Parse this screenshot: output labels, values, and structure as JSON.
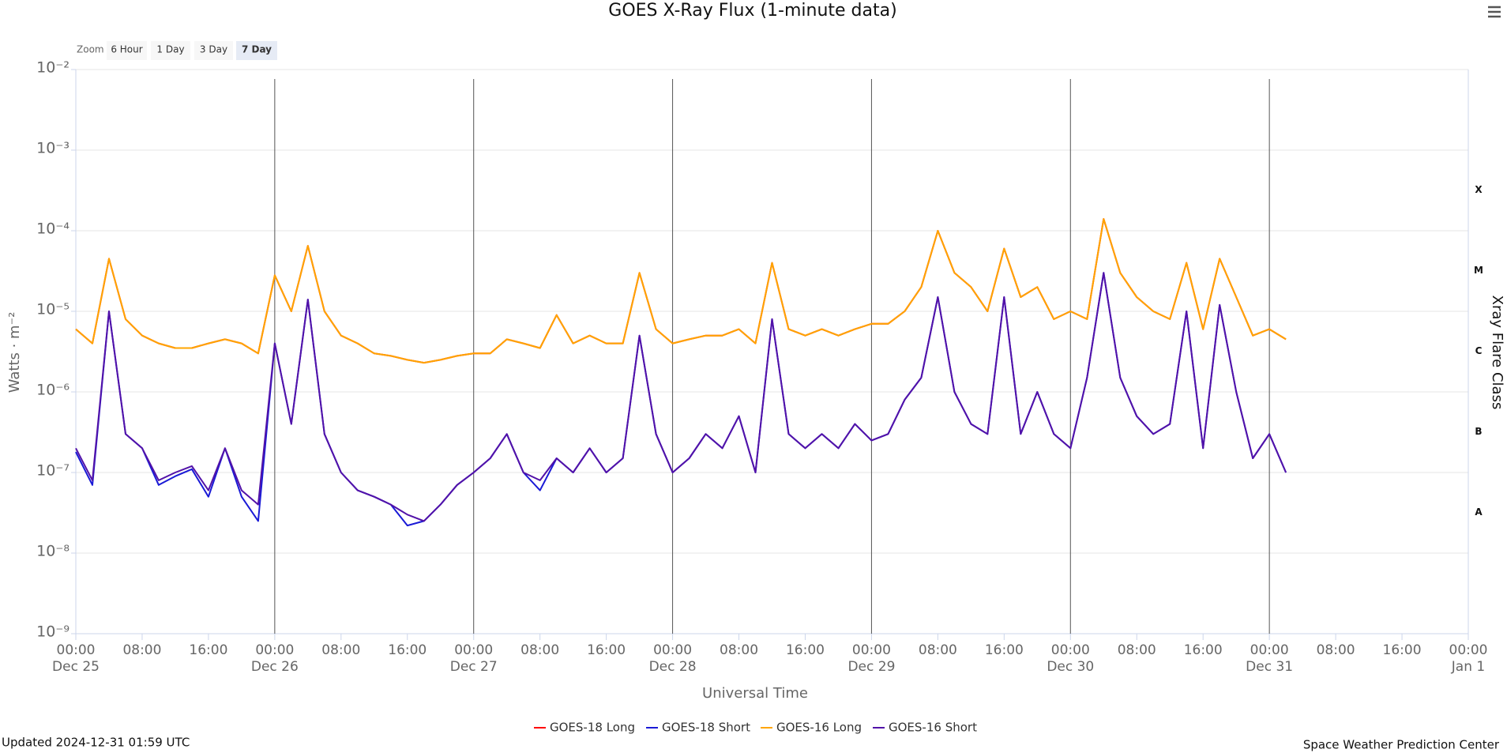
{
  "chart_data": {
    "type": "line",
    "title": "GOES X-Ray Flux (1-minute data)",
    "xlabel": "Universal Time",
    "ylabel": "Watts · m⁻²",
    "y2label": "Xray Flare Class",
    "log_y": true,
    "grid": true,
    "day_lines": true,
    "legend": "bottom",
    "x": [
      "Dec 25 00:00",
      "Dec 25 02:00",
      "Dec 25 04:00",
      "Dec 25 06:00",
      "Dec 25 08:00",
      "Dec 25 10:00",
      "Dec 25 12:00",
      "Dec 25 14:00",
      "Dec 25 16:00",
      "Dec 25 18:00",
      "Dec 25 20:00",
      "Dec 25 22:00",
      "Dec 26 00:00",
      "Dec 26 02:00",
      "Dec 26 04:00",
      "Dec 26 06:00",
      "Dec 26 08:00",
      "Dec 26 10:00",
      "Dec 26 12:00",
      "Dec 26 14:00",
      "Dec 26 16:00",
      "Dec 26 18:00",
      "Dec 26 20:00",
      "Dec 26 22:00",
      "Dec 27 00:00",
      "Dec 27 02:00",
      "Dec 27 04:00",
      "Dec 27 06:00",
      "Dec 27 08:00",
      "Dec 27 10:00",
      "Dec 27 12:00",
      "Dec 27 14:00",
      "Dec 27 16:00",
      "Dec 27 18:00",
      "Dec 27 20:00",
      "Dec 27 22:00",
      "Dec 28 00:00",
      "Dec 28 02:00",
      "Dec 28 04:00",
      "Dec 28 06:00",
      "Dec 28 08:00",
      "Dec 28 10:00",
      "Dec 28 12:00",
      "Dec 28 14:00",
      "Dec 28 16:00",
      "Dec 28 18:00",
      "Dec 28 20:00",
      "Dec 28 22:00",
      "Dec 29 00:00",
      "Dec 29 02:00",
      "Dec 29 04:00",
      "Dec 29 06:00",
      "Dec 29 08:00",
      "Dec 29 10:00",
      "Dec 29 12:00",
      "Dec 29 14:00",
      "Dec 29 16:00",
      "Dec 29 18:00",
      "Dec 29 20:00",
      "Dec 29 22:00",
      "Dec 30 00:00",
      "Dec 30 02:00",
      "Dec 30 04:00",
      "Dec 30 06:00",
      "Dec 30 08:00",
      "Dec 30 10:00",
      "Dec 30 12:00",
      "Dec 30 14:00",
      "Dec 30 16:00",
      "Dec 30 18:00",
      "Dec 30 20:00",
      "Dec 30 22:00",
      "Dec 31 00:00",
      "Dec 31 02:00"
    ],
    "series": [
      {
        "name": "GOES-18 Long",
        "color": "#ff0000",
        "values": [
          6e-06,
          4e-06,
          4.5e-05,
          8e-06,
          5e-06,
          4e-06,
          3.5e-06,
          3.5e-06,
          4e-06,
          4.5e-06,
          4e-06,
          3e-06,
          2.8e-05,
          1e-05,
          6.5e-05,
          1e-05,
          5e-06,
          4e-06,
          3e-06,
          2.8e-06,
          2.5e-06,
          2.3e-06,
          2.5e-06,
          2.8e-06,
          3e-06,
          3e-06,
          4.5e-06,
          4e-06,
          3.5e-06,
          9e-06,
          4e-06,
          5e-06,
          4e-06,
          4e-06,
          3e-05,
          6e-06,
          4e-06,
          4.5e-06,
          5e-06,
          5e-06,
          6e-06,
          4e-06,
          4e-05,
          6e-06,
          5e-06,
          6e-06,
          5e-06,
          6e-06,
          7e-06,
          7e-06,
          1e-05,
          2e-05,
          0.0001,
          3e-05,
          2e-05,
          1e-05,
          6e-05,
          1.5e-05,
          2e-05,
          8e-06,
          1e-05,
          8e-06,
          0.00014,
          3e-05,
          1.5e-05,
          1e-05,
          8e-06,
          4e-05,
          6e-06,
          4.5e-05,
          1.5e-05,
          5e-06,
          6e-06,
          4.5e-06
        ]
      },
      {
        "name": "GOES-18 Short",
        "color": "#1a1ad6",
        "values": [
          1.8e-07,
          7e-08,
          1e-05,
          3e-07,
          2e-07,
          7e-08,
          9e-08,
          1.1e-07,
          5e-08,
          2e-07,
          5e-08,
          2.5e-08,
          4e-06,
          4e-07,
          1.4e-05,
          3e-07,
          1e-07,
          6e-08,
          5e-08,
          4e-08,
          2.2e-08,
          2.5e-08,
          4e-08,
          7e-08,
          1e-07,
          1.5e-07,
          3e-07,
          1e-07,
          6e-08,
          1.5e-07,
          1e-07,
          2e-07,
          1e-07,
          1.5e-07,
          5e-06,
          3e-07,
          1e-07,
          1.5e-07,
          3e-07,
          2e-07,
          5e-07,
          1e-07,
          8e-06,
          3e-07,
          2e-07,
          3e-07,
          2e-07,
          4e-07,
          2.5e-07,
          3e-07,
          8e-07,
          1.5e-06,
          1.5e-05,
          1e-06,
          4e-07,
          3e-07,
          1.5e-05,
          3e-07,
          1e-06,
          3e-07,
          2e-07,
          1.5e-06,
          3e-05,
          1.5e-06,
          5e-07,
          3e-07,
          4e-07,
          1e-05,
          2e-07,
          1.2e-05,
          1e-06,
          1.5e-07,
          3e-07,
          1e-07
        ]
      },
      {
        "name": "GOES-16 Long",
        "color": "#ffa500",
        "values": [
          6e-06,
          4e-06,
          4.5e-05,
          8e-06,
          5e-06,
          4e-06,
          3.5e-06,
          3.5e-06,
          4e-06,
          4.5e-06,
          4e-06,
          3e-06,
          2.8e-05,
          1e-05,
          6.5e-05,
          1e-05,
          5e-06,
          4e-06,
          3e-06,
          2.8e-06,
          2.5e-06,
          2.3e-06,
          2.5e-06,
          2.8e-06,
          3e-06,
          3e-06,
          4.5e-06,
          4e-06,
          3.5e-06,
          9e-06,
          4e-06,
          5e-06,
          4e-06,
          4e-06,
          3e-05,
          6e-06,
          4e-06,
          4.5e-06,
          5e-06,
          5e-06,
          6e-06,
          4e-06,
          4e-05,
          6e-06,
          5e-06,
          6e-06,
          5e-06,
          6e-06,
          7e-06,
          7e-06,
          1e-05,
          2e-05,
          0.0001,
          3e-05,
          2e-05,
          1e-05,
          6e-05,
          1.5e-05,
          2e-05,
          8e-06,
          1e-05,
          8e-06,
          0.00014,
          3e-05,
          1.5e-05,
          1e-05,
          8e-06,
          4e-05,
          6e-06,
          4.5e-05,
          1.5e-05,
          5e-06,
          6e-06,
          4.5e-06
        ]
      },
      {
        "name": "GOES-16 Short",
        "color": "#5212a8",
        "values": [
          2e-07,
          8e-08,
          1e-05,
          3e-07,
          2e-07,
          8e-08,
          1e-07,
          1.2e-07,
          6e-08,
          2e-07,
          6e-08,
          4e-08,
          4e-06,
          4e-07,
          1.4e-05,
          3e-07,
          1e-07,
          6e-08,
          5e-08,
          4e-08,
          3e-08,
          2.5e-08,
          4e-08,
          7e-08,
          1e-07,
          1.5e-07,
          3e-07,
          1e-07,
          8e-08,
          1.5e-07,
          1e-07,
          2e-07,
          1e-07,
          1.5e-07,
          5e-06,
          3e-07,
          1e-07,
          1.5e-07,
          3e-07,
          2e-07,
          5e-07,
          1e-07,
          8e-06,
          3e-07,
          2e-07,
          3e-07,
          2e-07,
          4e-07,
          2.5e-07,
          3e-07,
          8e-07,
          1.5e-06,
          1.5e-05,
          1e-06,
          4e-07,
          3e-07,
          1.5e-05,
          3e-07,
          1e-06,
          3e-07,
          2e-07,
          1.5e-06,
          3e-05,
          1.5e-06,
          5e-07,
          3e-07,
          4e-07,
          1e-05,
          2e-07,
          1.2e-05,
          1e-06,
          1.5e-07,
          3e-07,
          1e-07
        ]
      }
    ],
    "xlim": [
      "Dec 25 00:00",
      "Jan 1 00:00"
    ],
    "xticks": [
      {
        "value": "Dec 25 00:00",
        "label": [
          "00:00",
          "Dec 25"
        ]
      },
      {
        "value": "Dec 25 08:00",
        "label": [
          "08:00"
        ]
      },
      {
        "value": "Dec 25 16:00",
        "label": [
          "16:00"
        ]
      },
      {
        "value": "Dec 26 00:00",
        "label": [
          "00:00",
          "Dec 26"
        ]
      },
      {
        "value": "Dec 26 08:00",
        "label": [
          "08:00"
        ]
      },
      {
        "value": "Dec 26 16:00",
        "label": [
          "16:00"
        ]
      },
      {
        "value": "Dec 27 00:00",
        "label": [
          "00:00",
          "Dec 27"
        ]
      },
      {
        "value": "Dec 27 08:00",
        "label": [
          "08:00"
        ]
      },
      {
        "value": "Dec 27 16:00",
        "label": [
          "16:00"
        ]
      },
      {
        "value": "Dec 28 00:00",
        "label": [
          "00:00",
          "Dec 28"
        ]
      },
      {
        "value": "Dec 28 08:00",
        "label": [
          "08:00"
        ]
      },
      {
        "value": "Dec 28 16:00",
        "label": [
          "16:00"
        ]
      },
      {
        "value": "Dec 29 00:00",
        "label": [
          "00:00",
          "Dec 29"
        ]
      },
      {
        "value": "Dec 29 08:00",
        "label": [
          "08:00"
        ]
      },
      {
        "value": "Dec 29 16:00",
        "label": [
          "16:00"
        ]
      },
      {
        "value": "Dec 30 00:00",
        "label": [
          "00:00",
          "Dec 30"
        ]
      },
      {
        "value": "Dec 30 08:00",
        "label": [
          "08:00"
        ]
      },
      {
        "value": "Dec 30 16:00",
        "label": [
          "16:00"
        ]
      },
      {
        "value": "Dec 31 00:00",
        "label": [
          "00:00",
          "Dec 31"
        ]
      },
      {
        "value": "Dec 31 08:00",
        "label": [
          "08:00"
        ]
      },
      {
        "value": "Dec 31 16:00",
        "label": [
          "16:00"
        ]
      },
      {
        "value": "Jan 1 00:00",
        "label": [
          "00:00",
          "Jan 1"
        ]
      }
    ],
    "ylim": [
      1e-09,
      0.01
    ],
    "yticks": [
      {
        "value": 1e-09,
        "label": "10⁻⁹"
      },
      {
        "value": 1e-08,
        "label": "10⁻⁸"
      },
      {
        "value": 1e-07,
        "label": "10⁻⁷"
      },
      {
        "value": 1e-06,
        "label": "10⁻⁶"
      },
      {
        "value": 1e-05,
        "label": "10⁻⁵"
      },
      {
        "value": 0.0001,
        "label": "10⁻⁴"
      },
      {
        "value": 0.001,
        "label": "10⁻³"
      },
      {
        "value": 0.01,
        "label": "10⁻²"
      }
    ],
    "y2lim": [
      1e-09,
      0.01
    ],
    "y2ticks": [
      {
        "value": 3.2e-08,
        "label": "A"
      },
      {
        "value": 3.2e-07,
        "label": "B"
      },
      {
        "value": 3.2e-06,
        "label": "C"
      },
      {
        "value": 3.2e-05,
        "label": "M"
      },
      {
        "value": 0.00032,
        "label": "X"
      }
    ]
  },
  "zoom": {
    "label": "Zoom",
    "buttons": [
      "6 Hour",
      "1 Day",
      "3 Day",
      "7 Day"
    ],
    "selected": 3
  },
  "updated": "Updated 2024-12-31 01:59 UTC",
  "credit": "Space Weather Prediction Center"
}
